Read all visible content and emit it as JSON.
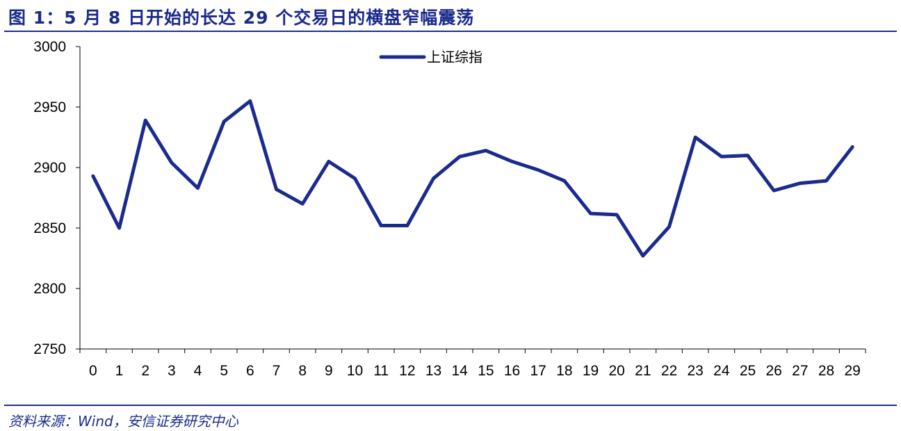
{
  "header": {
    "title": "图 1：5 月 8 日开始的长达 29 个交易日的横盘窄幅震荡"
  },
  "footer": {
    "source": "资料来源：Wind，安信证券研究中心"
  },
  "colors": {
    "accent": "#1f2d8a",
    "line": "#1b2a8f"
  },
  "chart_data": {
    "type": "line",
    "title": "",
    "xlabel": "",
    "ylabel": "",
    "x": [
      0,
      1,
      2,
      3,
      4,
      5,
      6,
      7,
      8,
      9,
      10,
      11,
      12,
      13,
      14,
      15,
      16,
      17,
      18,
      19,
      20,
      21,
      22,
      23,
      24,
      25,
      26,
      27,
      28,
      29
    ],
    "series": [
      {
        "name": "上证综指",
        "values": [
          2893,
          2850,
          2939,
          2904,
          2883,
          2938,
          2955,
          2882,
          2870,
          2905,
          2891,
          2852,
          2852,
          2891,
          2909,
          2914,
          2905,
          2898,
          2889,
          2862,
          2861,
          2827,
          2851,
          2925,
          2909,
          2910,
          2881,
          2887,
          2889,
          2917
        ]
      }
    ],
    "ylim": [
      2750,
      3000
    ],
    "yticks": [
      2750,
      2800,
      2850,
      2900,
      2950,
      3000
    ],
    "grid": false,
    "legend": "top-center"
  }
}
